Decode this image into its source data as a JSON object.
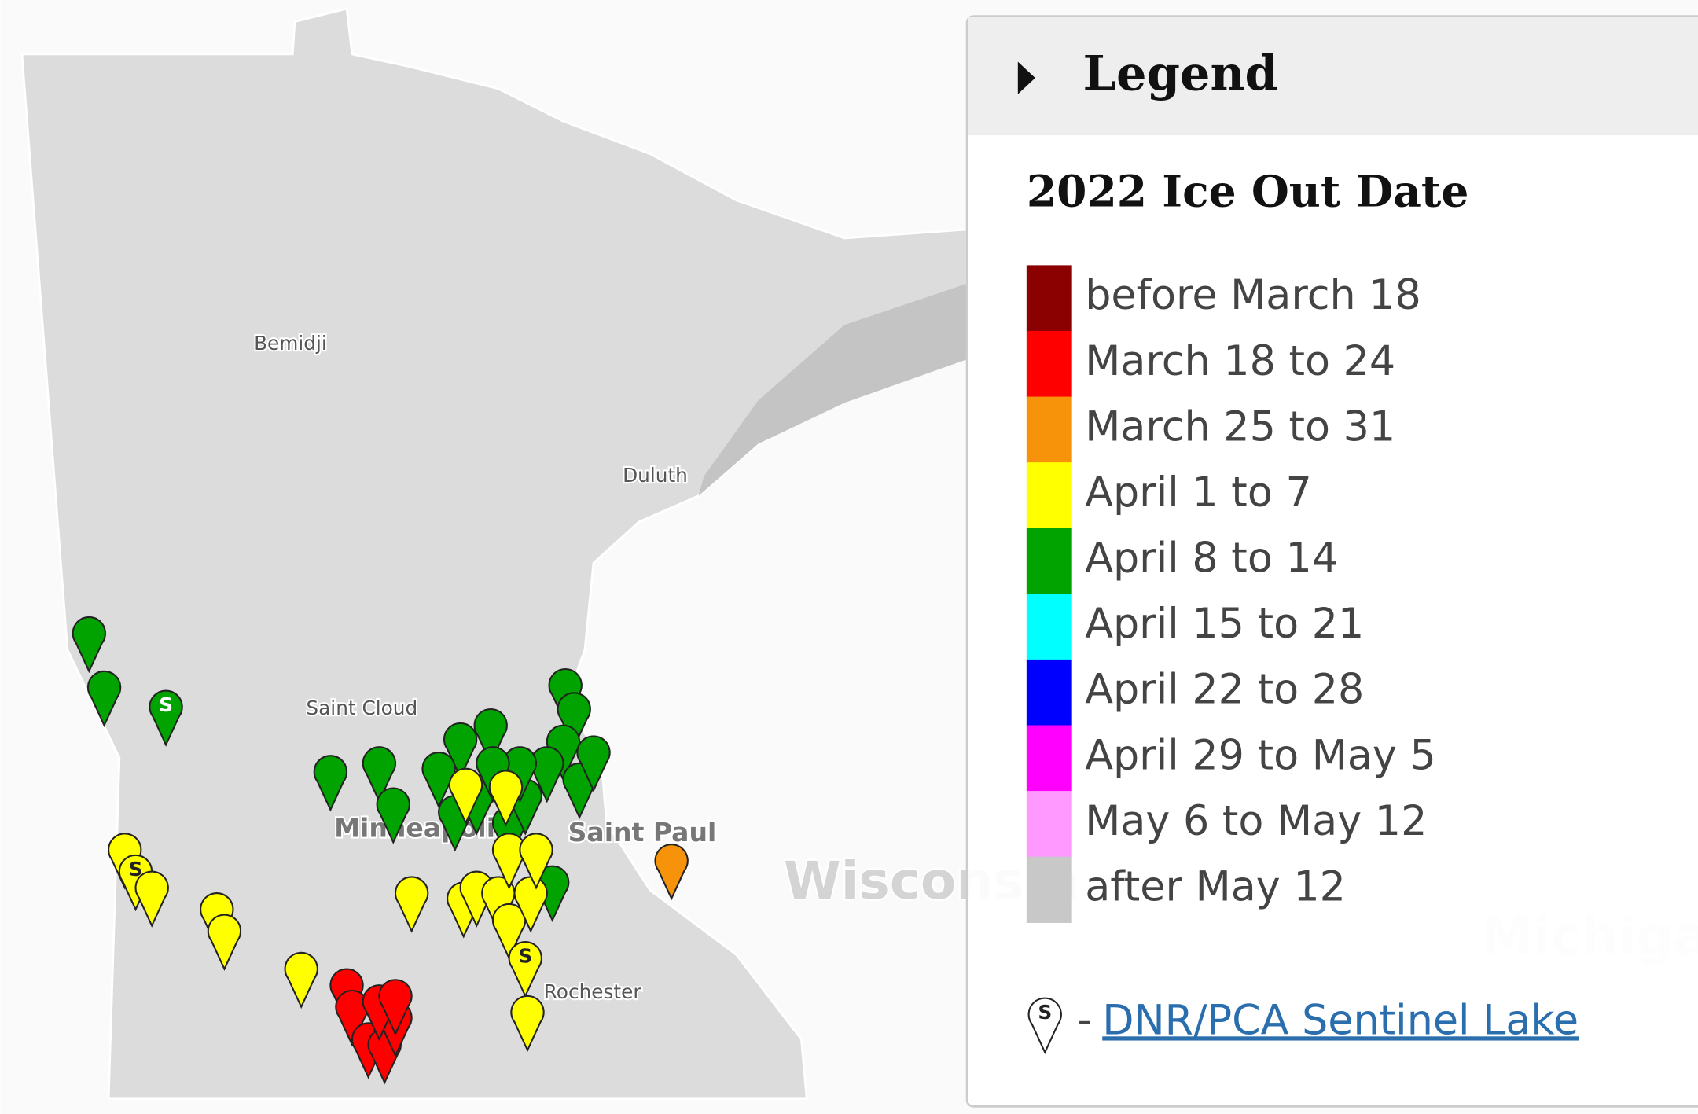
{
  "map": {
    "labels": [
      "Bemidji",
      "Duluth",
      "Saint Cloud",
      "Minneapolis",
      "Saint Paul",
      "Rochester",
      "Wisconsin",
      "Michigan"
    ]
  },
  "legend": {
    "header": "Legend",
    "title": "2022 Ice Out Date",
    "items": [
      {
        "label": "before March 18",
        "color": "#8b0000"
      },
      {
        "label": "March 18 to 24",
        "color": "#ff0000"
      },
      {
        "label": "March 25 to 31",
        "color": "#f7930a"
      },
      {
        "label": "April 1 to 7",
        "color": "#ffff00"
      },
      {
        "label": "April 8 to 14",
        "color": "#00a300"
      },
      {
        "label": "April 15 to 21",
        "color": "#00ffff"
      },
      {
        "label": "April 22 to 28",
        "color": "#0000ff"
      },
      {
        "label": "April 29 to May 5",
        "color": "#ff00ff"
      },
      {
        "label": "May 6 to May 12",
        "color": "#ff99ff"
      },
      {
        "label": "after May 12",
        "color": "#c8c8c8"
      }
    ],
    "sentinel": {
      "marker": "S",
      "dash": "-",
      "link": "DNR/PCA Sentinel Lake"
    }
  }
}
